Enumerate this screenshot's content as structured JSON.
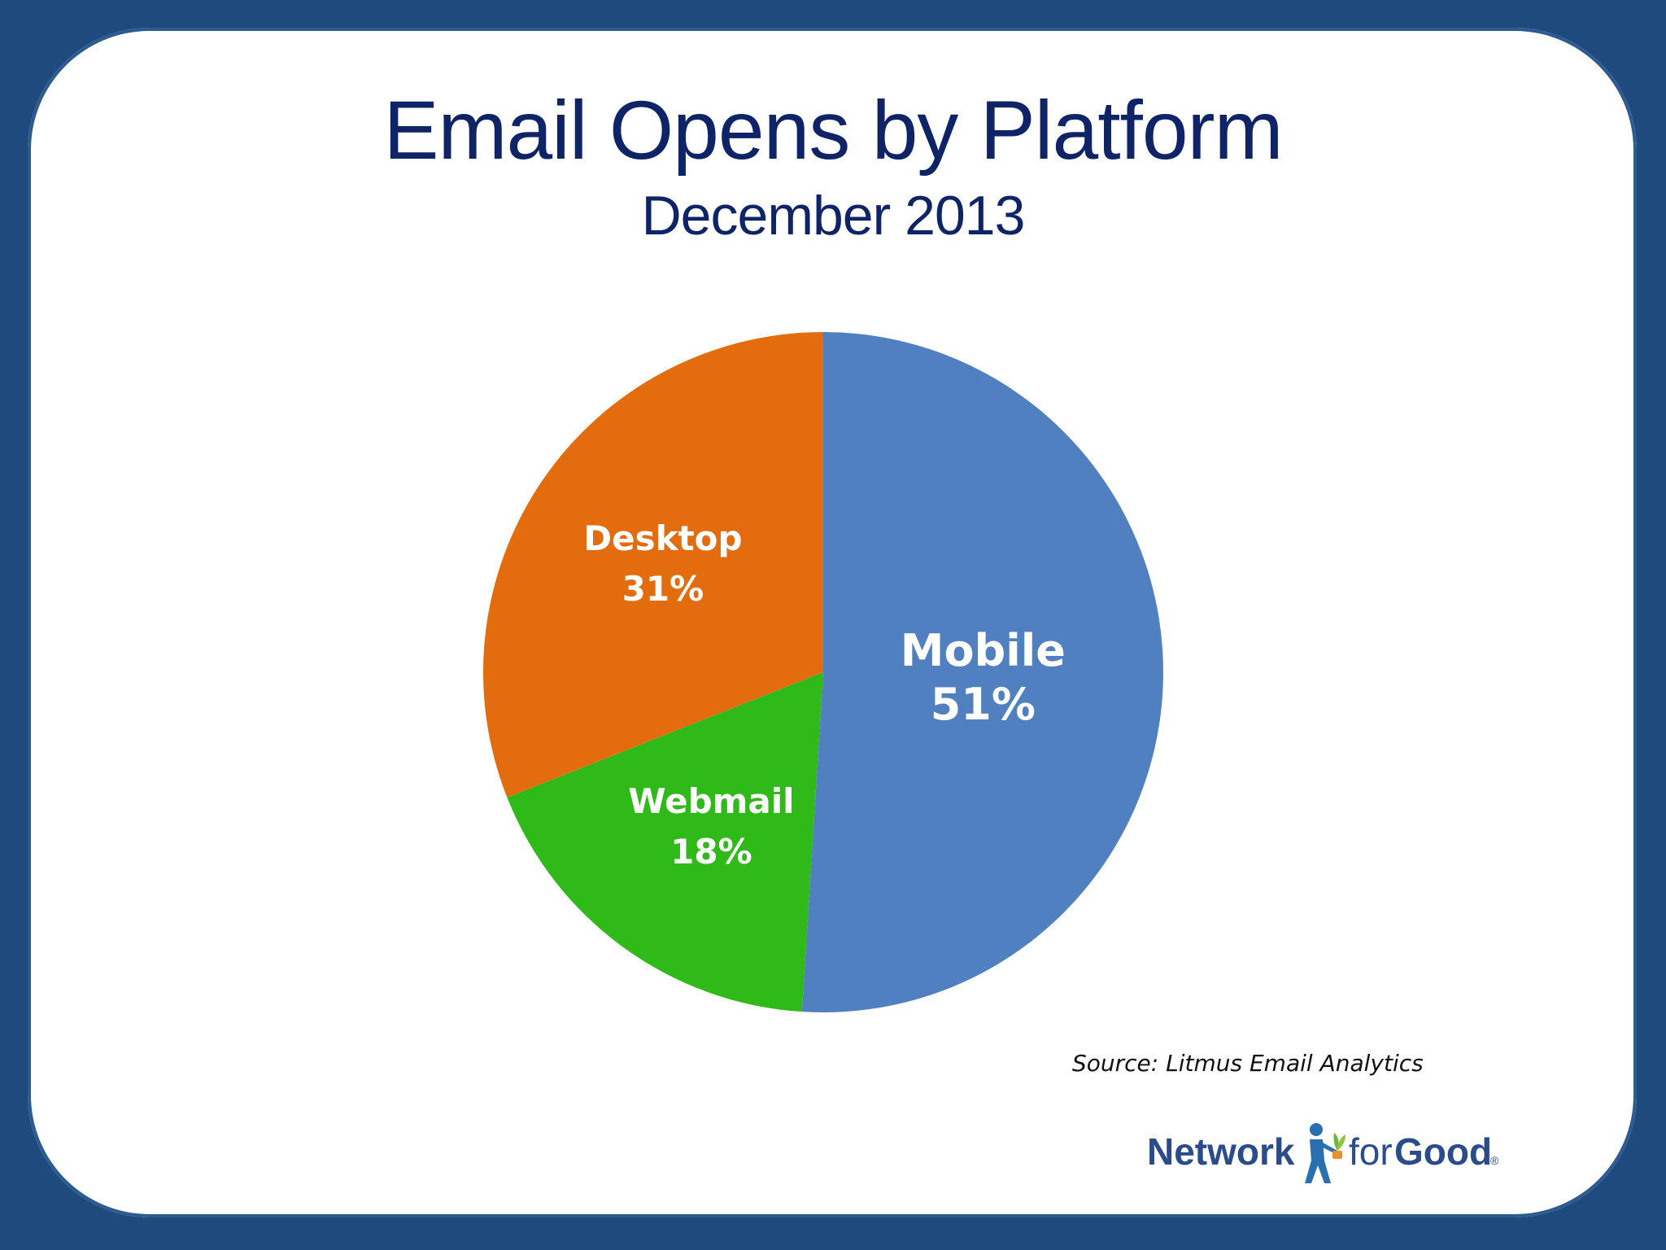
{
  "slide": {
    "title": "Email Opens by Platform",
    "subtitle": "December 2013",
    "source": "Source: Litmus Email Analytics",
    "logo": {
      "word1": "Network",
      "word2": "for",
      "word3": "Good",
      "reg": "®"
    }
  },
  "colors": {
    "background": "#1f4a7e",
    "title": "#0e2466",
    "mobile": "#5080c0",
    "desktop": "#e36c0e",
    "webmail": "#30ba19"
  },
  "chart_data": {
    "type": "pie",
    "title": "Email Opens by Platform",
    "subtitle": "December 2013",
    "start": "12 o'clock",
    "direction": "clockwise",
    "slices": [
      {
        "name": "Mobile",
        "value": 51,
        "label": "51%",
        "color": "#5080c0"
      },
      {
        "name": "Webmail",
        "value": 18,
        "label": "18%",
        "color": "#30ba19"
      },
      {
        "name": "Desktop",
        "value": 31,
        "label": "31%",
        "color": "#e36c0e"
      }
    ]
  }
}
